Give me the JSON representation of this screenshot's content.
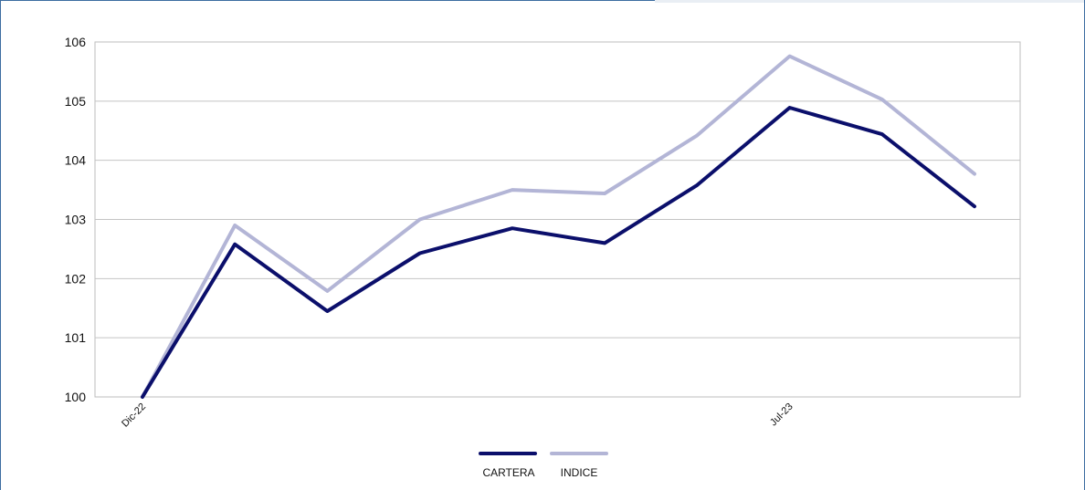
{
  "chart_data": {
    "type": "line",
    "categories": [
      "Dic-22",
      "",
      "",
      "",
      "",
      "",
      "",
      "Jul-23",
      "",
      ""
    ],
    "series": [
      {
        "name": "CARTERA",
        "color": "#0b0f6b",
        "values": [
          100,
          102.58,
          101.45,
          102.43,
          102.85,
          102.6,
          103.58,
          104.89,
          104.44,
          103.22
        ]
      },
      {
        "name": "INDICE",
        "color": "#b3b5d6",
        "values": [
          100,
          102.9,
          101.79,
          103.0,
          103.5,
          103.44,
          104.42,
          105.76,
          105.03,
          103.77
        ]
      }
    ],
    "ylim": [
      100,
      106
    ],
    "yticks": [
      "100",
      "101",
      "102",
      "103",
      "104",
      "105",
      "106"
    ],
    "grid": true,
    "legend": "bottom-center",
    "title": "",
    "xlabel": "",
    "ylabel": ""
  }
}
